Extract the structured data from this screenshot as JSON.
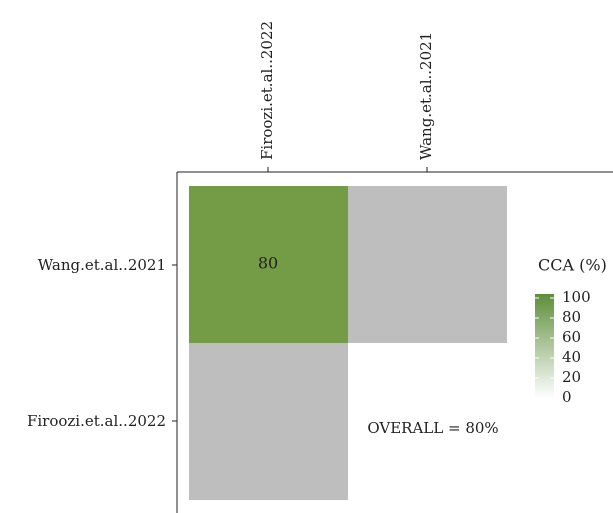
{
  "chart_data": {
    "type": "heatmap",
    "title": "",
    "x_categories": [
      "Firoozi.et.al..2022",
      "Wang.et.al..2021"
    ],
    "y_categories": [
      "Wang.et.al..2021",
      "Firoozi.et.al..2022"
    ],
    "cells": [
      {
        "row": "Wang.et.al..2021",
        "col": "Firoozi.et.al..2022",
        "value": 80,
        "label": "80"
      },
      {
        "row": "Wang.et.al..2021",
        "col": "Wang.et.al..2021",
        "value": null,
        "label": ""
      },
      {
        "row": "Firoozi.et.al..2022",
        "col": "Firoozi.et.al..2022",
        "value": null,
        "label": ""
      }
    ],
    "annotation": "OVERALL = 80%",
    "legend": {
      "title": "CCA (%)",
      "ticks": [
        "100",
        "80",
        "60",
        "40",
        "20",
        "0"
      ],
      "min": 0,
      "max": 100,
      "low_color": "#ffffff",
      "high_color": "#5e8e3a"
    },
    "colors": {
      "value_fill": "#749b45",
      "missing_fill": "#bebebe"
    },
    "axis_positions": {
      "x": "top",
      "y": "left"
    },
    "grid": false
  }
}
